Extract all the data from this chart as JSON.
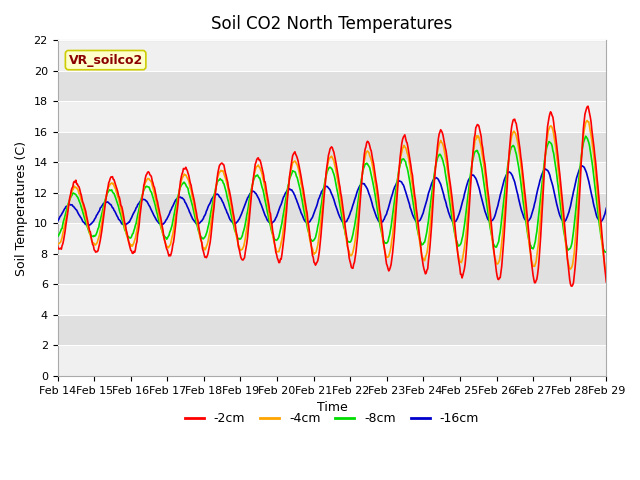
{
  "title": "Soil CO2 North Temperatures",
  "ylabel": "Soil Temperatures (C)",
  "xlabel": "Time",
  "ylim": [
    0,
    22
  ],
  "yticks": [
    0,
    2,
    4,
    6,
    8,
    10,
    12,
    14,
    16,
    18,
    20,
    22
  ],
  "xtick_labels": [
    "Feb 14",
    "Feb 15",
    "Feb 16",
    "Feb 17",
    "Feb 18",
    "Feb 19",
    "Feb 20",
    "Feb 21",
    "Feb 22",
    "Feb 23",
    "Feb 24",
    "Feb 25",
    "Feb 26",
    "Feb 27",
    "Feb 28",
    "Feb 29"
  ],
  "series_colors": {
    "-2cm": "#ff0000",
    "-4cm": "#ffa500",
    "-8cm": "#00dd00",
    "-16cm": "#0000cc"
  },
  "linewidth": 1.2,
  "annotation_text": "VR_soilco2",
  "annotation_bg": "#ffffcc",
  "annotation_border": "#cccc00",
  "annotation_text_color": "#8b0000",
  "plot_bg_light": "#f0f0f0",
  "plot_bg_dark": "#e0e0e0",
  "title_fontsize": 12,
  "label_fontsize": 9,
  "tick_fontsize": 8
}
